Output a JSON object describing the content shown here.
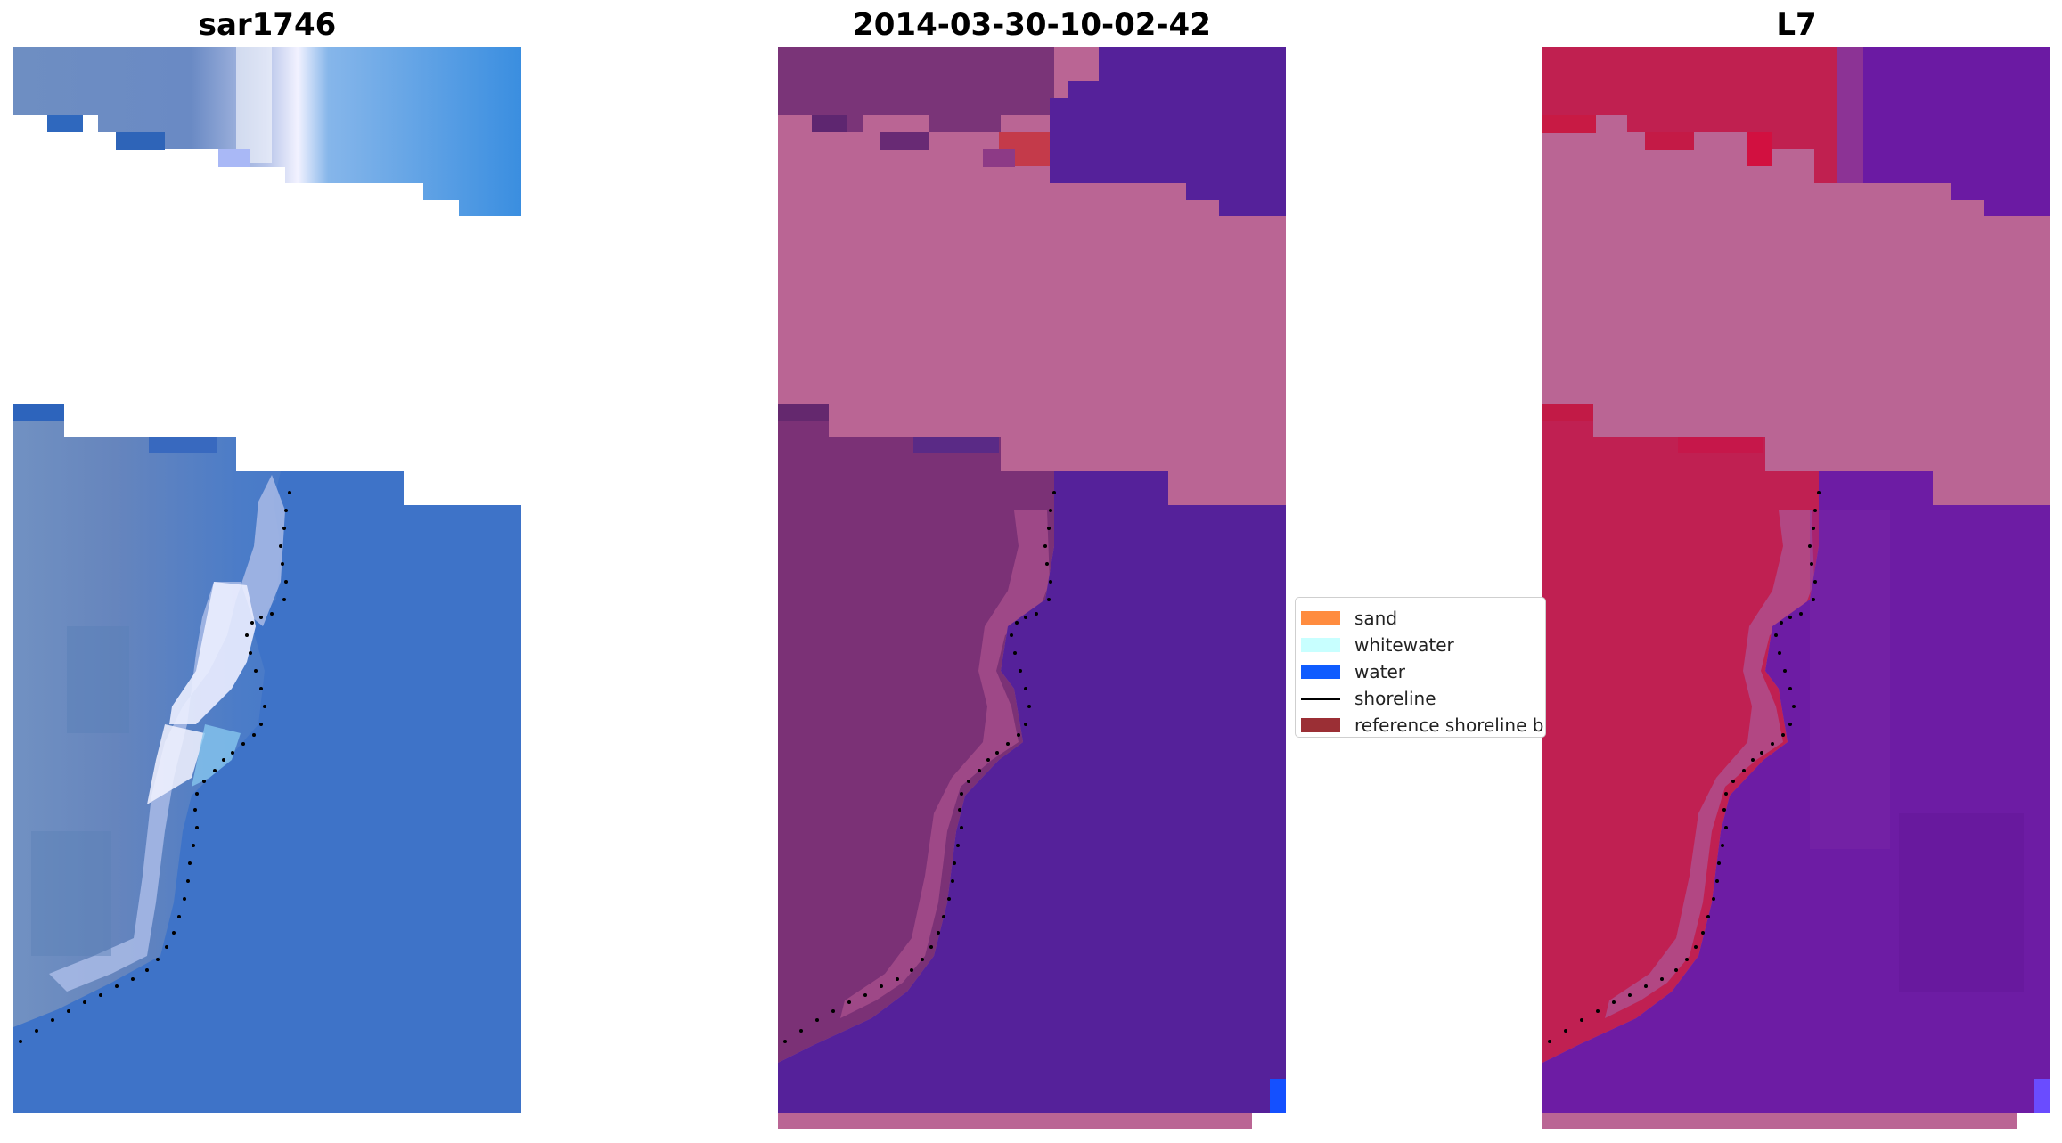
{
  "panels": [
    {
      "title": "sar1746",
      "kind": "rgb"
    },
    {
      "title": "2014-03-30-10-02-42",
      "kind": "classified"
    },
    {
      "title": "L7",
      "kind": "index"
    }
  ],
  "legend": {
    "items": [
      {
        "label": "sand",
        "color": "#ff8c3f",
        "kind": "patch"
      },
      {
        "label": "whitewater",
        "color": "#c8ffff",
        "kind": "patch"
      },
      {
        "label": "water",
        "color": "#0f5cff",
        "kind": "patch"
      },
      {
        "label": "shoreline",
        "color": "#000000",
        "kind": "line"
      },
      {
        "label": "reference shoreline buffer",
        "color": "#9b2f35",
        "kind": "patch"
      }
    ]
  },
  "colors": {
    "cloud_mask": "#ba6594",
    "water_class": "#55219a",
    "land_class": "#7b3176",
    "land_index": "#c21f4e",
    "water_index": "#6b1aa3",
    "rgb_water": "#3b73c9",
    "rgb_land": "#6f8fc0"
  }
}
